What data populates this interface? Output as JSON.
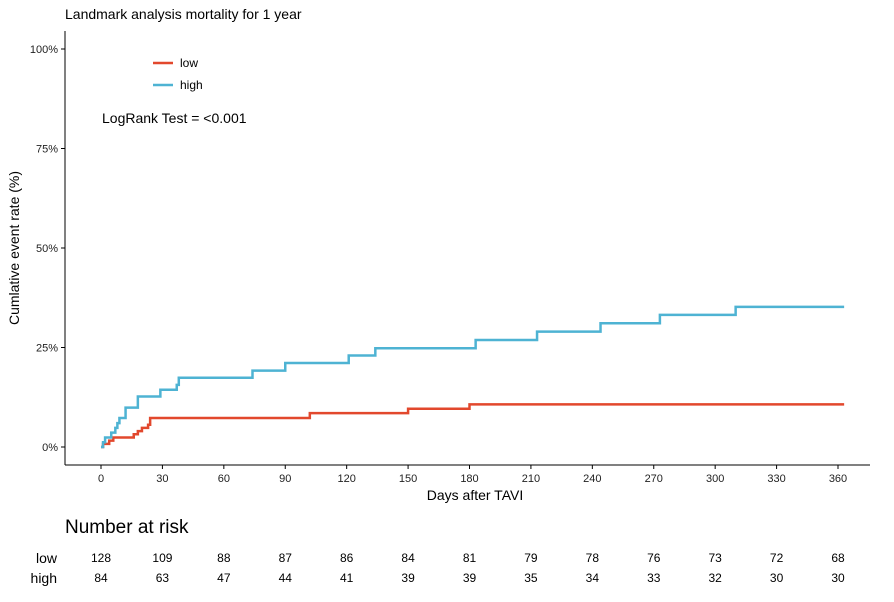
{
  "chart_data": {
    "type": "line",
    "title": "Landmark analysis mortality for 1 year",
    "xlabel": "Days after TAVI",
    "ylabel": "Cumlative event rate (%)",
    "xlim": [
      0,
      360
    ],
    "ylim": [
      0,
      100
    ],
    "x_ticks": [
      0,
      30,
      60,
      90,
      120,
      150,
      180,
      210,
      240,
      270,
      300,
      330,
      360
    ],
    "y_ticks": [
      0,
      25,
      50,
      75,
      100
    ],
    "y_tick_labels": [
      "0%",
      "25%",
      "50%",
      "75%",
      "100%"
    ],
    "grid": false,
    "legend_position": "top-left",
    "annotation": "LogRank Test = <0.001",
    "series": [
      {
        "name": "low",
        "color": "#E2482D",
        "steps": [
          [
            0,
            0
          ],
          [
            1,
            0.8
          ],
          [
            4,
            1.6
          ],
          [
            6,
            2.4
          ],
          [
            16,
            3.2
          ],
          [
            18,
            4.0
          ],
          [
            20,
            4.8
          ],
          [
            23,
            5.6
          ],
          [
            24,
            7.3
          ],
          [
            102,
            8.5
          ],
          [
            150,
            9.6
          ],
          [
            180,
            10.7
          ],
          [
            363,
            10.7
          ]
        ]
      },
      {
        "name": "high",
        "color": "#4EB3D3",
        "steps": [
          [
            0,
            0
          ],
          [
            1,
            1.2
          ],
          [
            2,
            2.4
          ],
          [
            5,
            3.6
          ],
          [
            7,
            4.8
          ],
          [
            8,
            6.0
          ],
          [
            9,
            7.3
          ],
          [
            12,
            9.9
          ],
          [
            18,
            12.7
          ],
          [
            29,
            14.4
          ],
          [
            37,
            15.6
          ],
          [
            38,
            17.4
          ],
          [
            74,
            19.2
          ],
          [
            90,
            21.1
          ],
          [
            121,
            23.0
          ],
          [
            134,
            24.8
          ],
          [
            183,
            26.9
          ],
          [
            213,
            29.0
          ],
          [
            244,
            31.1
          ],
          [
            273,
            33.2
          ],
          [
            310,
            35.2
          ],
          [
            363,
            35.2
          ]
        ]
      }
    ]
  },
  "risk_table": {
    "title": "Number at risk",
    "times": [
      0,
      30,
      60,
      90,
      120,
      150,
      180,
      210,
      240,
      270,
      300,
      330,
      360
    ],
    "rows": [
      {
        "label": "low",
        "values": [
          "128",
          "109",
          "88",
          "87",
          "86",
          "84",
          "81",
          "79",
          "78",
          "76",
          "73",
          "72",
          "68"
        ]
      },
      {
        "label": "high",
        "values": [
          "84",
          "63",
          "47",
          "44",
          "41",
          "39",
          "39",
          "35",
          "34",
          "33",
          "32",
          "30",
          "30"
        ]
      }
    ]
  }
}
